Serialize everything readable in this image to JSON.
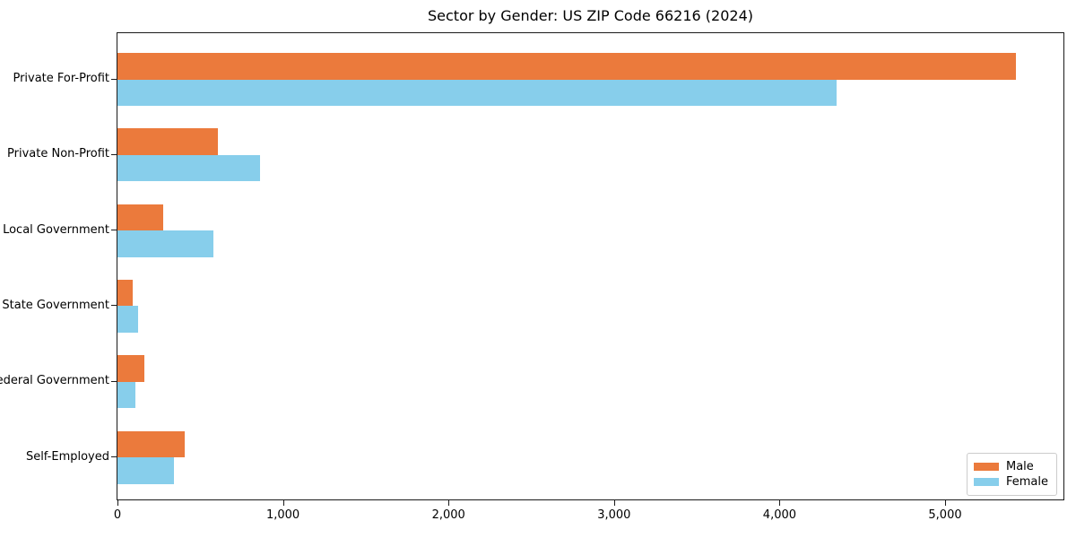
{
  "title": "Sector by Gender: US ZIP Code 66216 (2024)",
  "chart_data": {
    "type": "bar",
    "orientation": "horizontal",
    "title": "Sector by Gender: US ZIP Code 66216 (2024)",
    "categories": [
      "Private For-Profit",
      "Private Non-Profit",
      "Local Government",
      "State Government",
      "Federal Government",
      "Self-Employed"
    ],
    "series": [
      {
        "name": "Male",
        "color": "#EB7A3C",
        "values": [
          5430,
          605,
          275,
          90,
          160,
          405
        ]
      },
      {
        "name": "Female",
        "color": "#87CEEB",
        "values": [
          4345,
          860,
          578,
          122,
          108,
          340
        ]
      }
    ],
    "xlabel": "",
    "ylabel": "",
    "xlim": [
      0,
      5715
    ],
    "xticks": {
      "values": [
        0,
        1000,
        2000,
        3000,
        4000,
        5000
      ],
      "labels": [
        "0",
        "1,000",
        "2,000",
        "3,000",
        "4,000",
        "5,000"
      ]
    },
    "grid": false,
    "legend": {
      "position": "lower right",
      "entries": [
        "Male",
        "Female"
      ]
    },
    "colors": {
      "male": "#EB7A3C",
      "female": "#87CEEB",
      "spine": "#1a1a1a",
      "legend_border": "#cccccc"
    }
  }
}
